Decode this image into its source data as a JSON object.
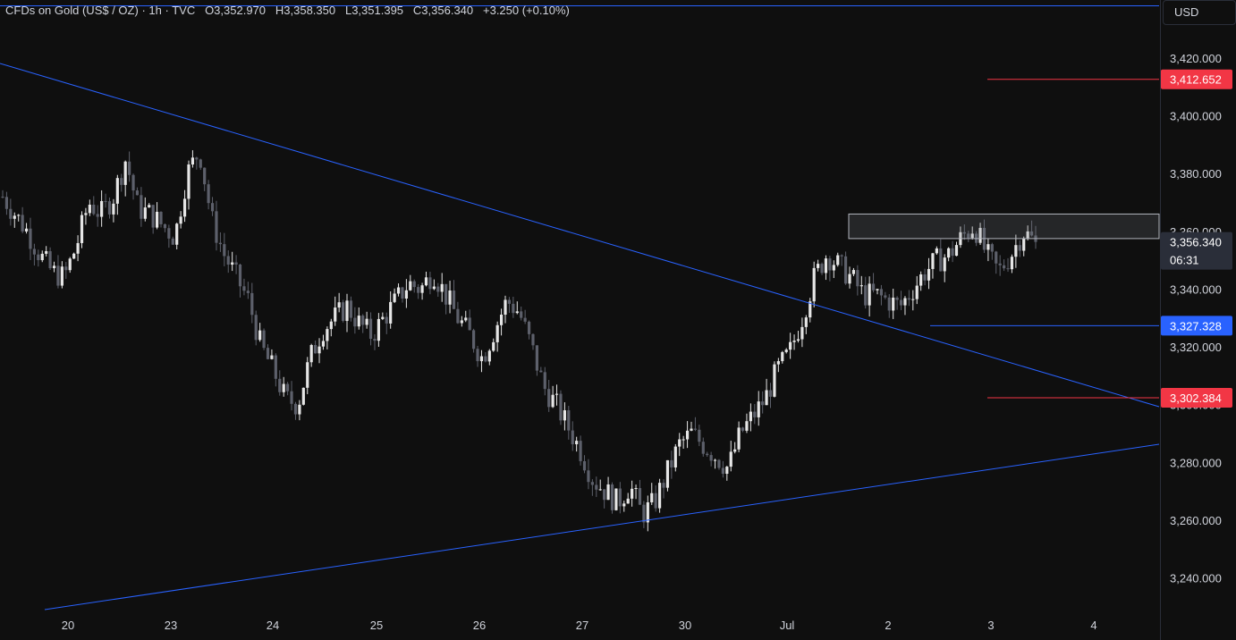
{
  "header": {
    "symbol": "CFDs on Gold (US$ / OZ)",
    "interval": "1h",
    "source": "TVC",
    "open": "O3,352.970",
    "high": "H3,358.350",
    "low": "L3,351.395",
    "close": "C3,356.340",
    "change": "+3.250 (+0.10%)"
  },
  "currency_button": "USD",
  "price_tags": [
    {
      "label": "3,412.652",
      "value": 3412.652,
      "color": "#f23645"
    },
    {
      "label": "3,327.328",
      "value": 3327.328,
      "color": "#2962ff"
    },
    {
      "label": "3,302.384",
      "value": 3302.384,
      "color": "#f23645"
    }
  ],
  "last_price": {
    "label": "3,356.340",
    "value": 3356.34,
    "countdown": "06:31",
    "color": "#2a2e39"
  },
  "colors": {
    "background": "#0f0f0f",
    "candle_up": "#e6e6e6",
    "candle_down": "#5d606b",
    "trendline": "#2962ff",
    "level_red": "#f23645",
    "level_blue": "#2962ff"
  },
  "chart_data": {
    "type": "candlestick",
    "title": "CFDs on Gold (US$ / OZ) · 1h · TVC",
    "ylim": [
      3225,
      3445
    ],
    "y_ticks": [
      "3,240.000",
      "3,260.000",
      "3,280.000",
      "3,300.000",
      "3,320.000",
      "3,340.000",
      "3,360.000",
      "3,380.000",
      "3,400.000",
      "3,420.000"
    ],
    "y_tick_values": [
      3240,
      3260,
      3280,
      3300,
      3320,
      3340,
      3360,
      3380,
      3400,
      3420
    ],
    "x_ticks": [
      "20",
      "23",
      "24",
      "25",
      "26",
      "27",
      "30",
      "Jul",
      "2",
      "3",
      "4"
    ],
    "series_approx_close": [
      3372,
      3366,
      3360,
      3352,
      3346,
      3344,
      3355,
      3370,
      3366,
      3372,
      3385,
      3368,
      3366,
      3362,
      3358,
      3380,
      3388,
      3364,
      3352,
      3344,
      3336,
      3320,
      3312,
      3302,
      3300,
      3316,
      3326,
      3330,
      3334,
      3328,
      3324,
      3330,
      3336,
      3342,
      3340,
      3346,
      3338,
      3330,
      3324,
      3316,
      3326,
      3336,
      3332,
      3320,
      3306,
      3300,
      3292,
      3284,
      3274,
      3270,
      3266,
      3272,
      3262,
      3266,
      3276,
      3286,
      3290,
      3286,
      3282,
      3278,
      3290,
      3296,
      3302,
      3312,
      3318,
      3330,
      3344,
      3352,
      3348,
      3344,
      3338,
      3338,
      3336,
      3334,
      3340,
      3346,
      3350,
      3352,
      3358,
      3362,
      3352,
      3346,
      3352,
      3360,
      3356
    ],
    "trendlines": [
      {
        "name": "descending",
        "start": {
          "x": "19",
          "y": 3425
        },
        "end": {
          "x": "4",
          "y": 3300
        }
      },
      {
        "name": "ascending",
        "start": {
          "x": "20",
          "y": 3229
        },
        "end": {
          "x": "4",
          "y": 3286
        }
      }
    ],
    "horizontal_levels": [
      3412.652,
      3327.328,
      3302.384
    ],
    "resistance_zone": [
      3357.5,
      3366
    ]
  }
}
